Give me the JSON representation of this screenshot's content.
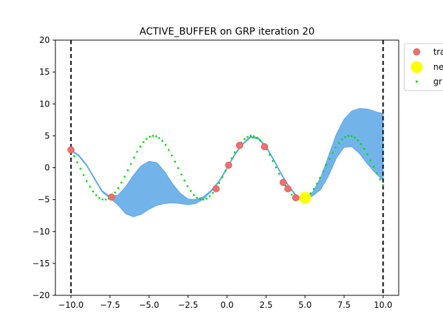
{
  "chart_data": {
    "type": "scatter",
    "title": "ACTIVE_BUFFER on GRP iteration 20",
    "xlabel": "",
    "ylabel": "",
    "xlim": [
      -11,
      11
    ],
    "ylim": [
      -20,
      20
    ],
    "xticks": [
      -10.0,
      -7.5,
      -5.0,
      -2.5,
      0.0,
      2.5,
      5.0,
      7.5,
      10.0
    ],
    "xtick_labels": [
      "−10.0",
      "−7.5",
      "−5.0",
      "−2.5",
      "0.0",
      "2.5",
      "5.0",
      "7.5",
      "10.0"
    ],
    "yticks": [
      -20,
      -15,
      -10,
      -5,
      0,
      5,
      10,
      15,
      20
    ],
    "ytick_labels": [
      "−20",
      "−15",
      "−10",
      "−5",
      "0",
      "5",
      "10",
      "15",
      "20"
    ],
    "grid": false,
    "legend_position": "outside-top-right",
    "vlines": [
      -10,
      10
    ],
    "series": [
      {
        "name": "tra",
        "kind": "points",
        "color": "#f07070",
        "edge_color": "#e05a5a",
        "x": [
          -10.0,
          -7.4,
          -0.7,
          0.1,
          0.8,
          2.4,
          3.6,
          3.9,
          4.4
        ],
        "y": [
          2.8,
          -4.6,
          -3.3,
          0.4,
          3.5,
          3.3,
          -2.3,
          -3.3,
          -4.7
        ]
      },
      {
        "name": "ne",
        "kind": "points",
        "color": "#ffff00",
        "x": [
          5.0
        ],
        "y": [
          -4.7
        ]
      },
      {
        "name": "gr",
        "kind": "dotted-curve",
        "color": "#00e000",
        "x_range": [
          -10,
          10
        ],
        "samples": 100
      },
      {
        "kind": "band",
        "color": "#72b4ea",
        "edge_color": "#5aa6e6",
        "upper": {
          "x": [
            -10,
            -9.5,
            -9,
            -8.5,
            -8,
            -7.5,
            -7,
            -6.5,
            -6,
            -5.5,
            -5,
            -4.5,
            -4,
            -3.5,
            -3,
            -2.5,
            -2,
            -1.5,
            -1,
            -0.5,
            0,
            0.5,
            1,
            1.5,
            2,
            2.5,
            3,
            3.5,
            4,
            4.5,
            5,
            5.5,
            6,
            6.5,
            7,
            7.5,
            8,
            8.5,
            9,
            9.5,
            10
          ],
          "y": [
            2.8,
            2.0,
            0.5,
            -1.6,
            -3.6,
            -4.5,
            -4.3,
            -3.0,
            -1.2,
            0.3,
            1.0,
            0.8,
            -0.6,
            -2.5,
            -4.0,
            -4.9,
            -5.0,
            -4.5,
            -3.5,
            -2.0,
            0.0,
            2.2,
            3.8,
            4.9,
            4.7,
            3.4,
            1.3,
            -1.0,
            -3.0,
            -4.5,
            -4.8,
            -3.8,
            -1.5,
            1.8,
            5.2,
            7.6,
            8.9,
            9.3,
            9.2,
            8.8,
            8.5
          ]
        },
        "lower": {
          "x": [
            -10,
            -9.5,
            -9,
            -8.5,
            -8,
            -7.5,
            -7,
            -6.5,
            -6,
            -5.5,
            -5,
            -4.5,
            -4,
            -3.5,
            -3,
            -2.5,
            -2,
            -1.5,
            -1,
            -0.5,
            0,
            0.5,
            1,
            1.5,
            2,
            2.5,
            3,
            3.5,
            4,
            4.5,
            5,
            5.5,
            6,
            6.5,
            7,
            7.5,
            8,
            8.5,
            9,
            9.5,
            10
          ],
          "y": [
            2.7,
            1.8,
            0.3,
            -1.8,
            -3.8,
            -4.8,
            -5.8,
            -7.2,
            -7.7,
            -7.3,
            -6.5,
            -5.9,
            -5.6,
            -5.5,
            -5.6,
            -5.8,
            -5.6,
            -4.9,
            -3.7,
            -2.2,
            -0.2,
            2.0,
            3.6,
            4.7,
            4.5,
            3.2,
            1.1,
            -1.2,
            -3.2,
            -4.7,
            -5.0,
            -4.4,
            -3.4,
            -1.3,
            1.5,
            3.2,
            3.3,
            2.2,
            0.6,
            -0.8,
            -2.0
          ]
        }
      }
    ]
  }
}
